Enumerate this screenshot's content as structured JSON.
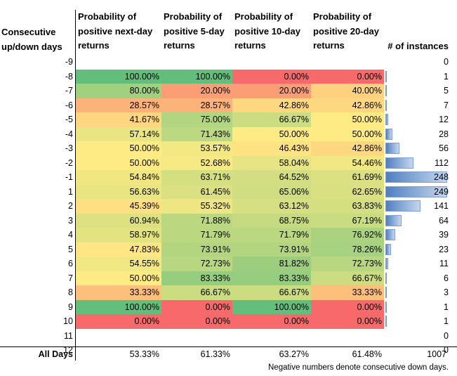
{
  "headers": {
    "consecutive": [
      "Consecutive",
      "up/down days"
    ],
    "p1": [
      "Probability of",
      "positive next-day",
      "returns"
    ],
    "p2": [
      "Probability of",
      "positive 5-day",
      "returns"
    ],
    "p3": [
      "Probability of",
      "positive 10-day",
      "returns"
    ],
    "p4": [
      "Probability of",
      "positive 20-day",
      "returns"
    ],
    "instances": "# of instances"
  },
  "rows": [
    {
      "days": "-9",
      "p1": "",
      "p2": "",
      "p3": "",
      "p4": "",
      "n": "0",
      "nval": 0
    },
    {
      "days": "-8",
      "p1": "100.00%",
      "p2": "100.00%",
      "p3": "0.00%",
      "p4": "0.00%",
      "n": "1",
      "nval": 1
    },
    {
      "days": "-7",
      "p1": "80.00%",
      "p2": "20.00%",
      "p3": "20.00%",
      "p4": "40.00%",
      "n": "5",
      "nval": 5
    },
    {
      "days": "-6",
      "p1": "28.57%",
      "p2": "28.57%",
      "p3": "42.86%",
      "p4": "42.86%",
      "n": "7",
      "nval": 7
    },
    {
      "days": "-5",
      "p1": "41.67%",
      "p2": "75.00%",
      "p3": "66.67%",
      "p4": "50.00%",
      "n": "12",
      "nval": 12
    },
    {
      "days": "-4",
      "p1": "57.14%",
      "p2": "71.43%",
      "p3": "50.00%",
      "p4": "50.00%",
      "n": "28",
      "nval": 28
    },
    {
      "days": "-3",
      "p1": "50.00%",
      "p2": "53.57%",
      "p3": "46.43%",
      "p4": "42.86%",
      "n": "56",
      "nval": 56
    },
    {
      "days": "-2",
      "p1": "50.00%",
      "p2": "52.68%",
      "p3": "58.04%",
      "p4": "54.46%",
      "n": "112",
      "nval": 112
    },
    {
      "days": "-1",
      "p1": "54.84%",
      "p2": "63.71%",
      "p3": "64.52%",
      "p4": "61.69%",
      "n": "248",
      "nval": 248
    },
    {
      "days": "1",
      "p1": "56.63%",
      "p2": "61.45%",
      "p3": "65.06%",
      "p4": "62.65%",
      "n": "249",
      "nval": 249
    },
    {
      "days": "2",
      "p1": "45.39%",
      "p2": "55.32%",
      "p3": "63.12%",
      "p4": "63.83%",
      "n": "141",
      "nval": 141
    },
    {
      "days": "3",
      "p1": "60.94%",
      "p2": "71.88%",
      "p3": "68.75%",
      "p4": "67.19%",
      "n": "64",
      "nval": 64
    },
    {
      "days": "4",
      "p1": "58.97%",
      "p2": "71.79%",
      "p3": "71.79%",
      "p4": "76.92%",
      "n": "39",
      "nval": 39
    },
    {
      "days": "5",
      "p1": "47.83%",
      "p2": "73.91%",
      "p3": "73.91%",
      "p4": "78.26%",
      "n": "23",
      "nval": 23
    },
    {
      "days": "6",
      "p1": "54.55%",
      "p2": "72.73%",
      "p3": "81.82%",
      "p4": "72.73%",
      "n": "11",
      "nval": 11
    },
    {
      "days": "7",
      "p1": "50.00%",
      "p2": "83.33%",
      "p3": "83.33%",
      "p4": "66.67%",
      "n": "6",
      "nval": 6
    },
    {
      "days": "8",
      "p1": "33.33%",
      "p2": "66.67%",
      "p3": "66.67%",
      "p4": "33.33%",
      "n": "3",
      "nval": 3
    },
    {
      "days": "9",
      "p1": "100.00%",
      "p2": "0.00%",
      "p3": "100.00%",
      "p4": "0.00%",
      "n": "1",
      "nval": 1
    },
    {
      "days": "10",
      "p1": "0.00%",
      "p2": "0.00%",
      "p3": "0.00%",
      "p4": "0.00%",
      "n": "1",
      "nval": 1
    },
    {
      "days": "11",
      "p1": "",
      "p2": "",
      "p3": "",
      "p4": "",
      "n": "0",
      "nval": 0
    },
    {
      "days": "12",
      "p1": "",
      "p2": "",
      "p3": "",
      "p4": "",
      "n": "0",
      "nval": 0
    }
  ],
  "totals": {
    "label": "All Days",
    "p1": "53.33%",
    "p2": "61.33%",
    "p3": "63.27%",
    "p4": "61.48%",
    "n": "1007"
  },
  "note": "Negative numbers denote consecutive down days.",
  "colors": {
    "low": "#f8696b",
    "mid": "#ffeb84",
    "high": "#63be7b",
    "bar": "#5a8ac6"
  }
}
